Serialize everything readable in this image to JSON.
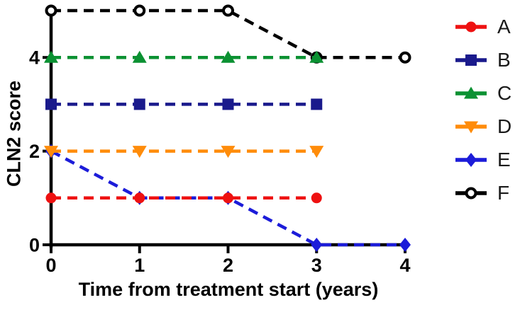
{
  "chart_data": {
    "type": "line",
    "title": "",
    "xlabel": "Time from treatment start (years)",
    "ylabel": "CLN2 score",
    "xlim": [
      0,
      4
    ],
    "ylim": [
      0,
      5
    ],
    "xticks": [
      "0",
      "1",
      "2",
      "3",
      "4"
    ],
    "xtick_values": [
      0,
      1,
      2,
      3,
      4
    ],
    "yticks": [
      "0",
      "2",
      "4"
    ],
    "ytick_values": [
      0,
      2,
      4
    ],
    "grid": false,
    "line_style": "dashed",
    "legend_position": "right",
    "axis_color": "#000000",
    "series": [
      {
        "name": "A",
        "label": "A",
        "color": "#ee1111",
        "marker": "circle",
        "x": [
          0,
          1,
          2,
          3
        ],
        "y": [
          1,
          1,
          1,
          1
        ]
      },
      {
        "name": "B",
        "label": "B",
        "color": "#1a1a8c",
        "marker": "square",
        "x": [
          0,
          1,
          2,
          3
        ],
        "y": [
          3,
          3,
          3,
          3
        ]
      },
      {
        "name": "C",
        "label": "C",
        "color": "#0b9132",
        "marker": "triangle-up",
        "x": [
          0,
          1,
          2,
          3
        ],
        "y": [
          4,
          4,
          4,
          4
        ]
      },
      {
        "name": "D",
        "label": "D",
        "color": "#ff8c0a",
        "marker": "triangle-down",
        "x": [
          0,
          1,
          2,
          3
        ],
        "y": [
          2,
          2,
          2,
          2
        ]
      },
      {
        "name": "E",
        "label": "E",
        "color": "#1c1cd9",
        "marker": "diamond",
        "x": [
          0,
          1,
          2,
          3,
          4
        ],
        "y": [
          2,
          1,
          1,
          0,
          0
        ]
      },
      {
        "name": "F",
        "label": "F",
        "color": "#000000",
        "marker": "open-circle",
        "x": [
          0,
          1,
          2,
          3,
          4
        ],
        "y": [
          5,
          5,
          5,
          4,
          4
        ]
      }
    ],
    "draw_order": [
      "E",
      "B",
      "F",
      "C",
      "D",
      "A"
    ]
  }
}
